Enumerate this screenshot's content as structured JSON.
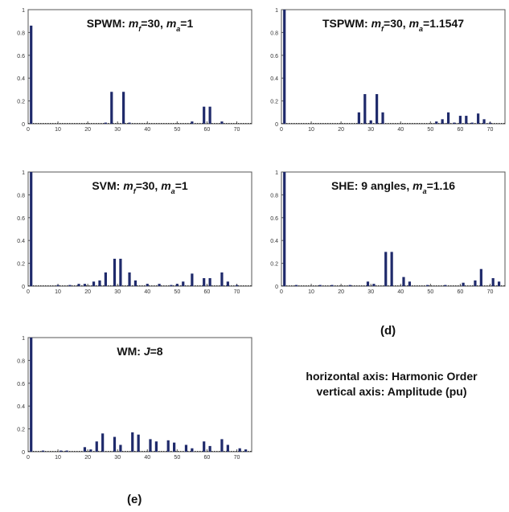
{
  "chart_data": [
    {
      "type": "bar",
      "title": [
        "SPWM: ",
        "m",
        "f",
        "=30, ",
        "m",
        "a",
        "=1"
      ],
      "xlim": [
        0,
        75
      ],
      "ylim": [
        0,
        1
      ],
      "xticks": [
        "0",
        "10",
        "20",
        "30",
        "40",
        "50",
        "60",
        "70"
      ],
      "yticks": [
        "0",
        "0.2",
        "0.4",
        "0.6",
        "0.8",
        "1"
      ],
      "x": [
        1,
        26,
        28,
        32,
        34,
        55,
        59,
        61,
        65
      ],
      "values": [
        0.86,
        0.01,
        0.28,
        0.28,
        0.01,
        0.02,
        0.15,
        0.15,
        0.02
      ]
    },
    {
      "type": "bar",
      "title": [
        "TSPWM: ",
        "m",
        "f",
        "=30, ",
        "m",
        "a",
        "=1.1547"
      ],
      "xlim": [
        0,
        75
      ],
      "ylim": [
        0,
        1
      ],
      "xticks": [
        "0",
        "10",
        "20",
        "30",
        "40",
        "50",
        "60",
        "70"
      ],
      "yticks": [
        "0",
        "0.2",
        "0.4",
        "0.6",
        "0.8",
        "1"
      ],
      "x": [
        1,
        26,
        28,
        30,
        32,
        34,
        52,
        54,
        56,
        58,
        60,
        62,
        64,
        66,
        68,
        70
      ],
      "values": [
        1.0,
        0.1,
        0.26,
        0.03,
        0.26,
        0.1,
        0.02,
        0.04,
        0.1,
        0.01,
        0.07,
        0.07,
        0.01,
        0.09,
        0.04,
        0.01
      ]
    },
    {
      "type": "bar",
      "title": [
        "SVM: ",
        "m",
        "f",
        "=30, ",
        "m",
        "a",
        "=1"
      ],
      "xlim": [
        0,
        75
      ],
      "ylim": [
        0,
        1
      ],
      "xticks": [
        "0",
        "10",
        "20",
        "30",
        "40",
        "50",
        "60",
        "70"
      ],
      "yticks": [
        "0",
        "0.2",
        "0.4",
        "0.6",
        "0.8",
        "1"
      ],
      "x": [
        1,
        10,
        14,
        17,
        19,
        22,
        24,
        26,
        29,
        31,
        34,
        36,
        40,
        44,
        48,
        50,
        52,
        55,
        59,
        61,
        65,
        67,
        70
      ],
      "values": [
        1.0,
        0.01,
        0.01,
        0.02,
        0.02,
        0.04,
        0.05,
        0.12,
        0.24,
        0.24,
        0.12,
        0.05,
        0.02,
        0.02,
        0.01,
        0.02,
        0.04,
        0.11,
        0.07,
        0.07,
        0.12,
        0.04,
        0.01
      ]
    },
    {
      "type": "bar",
      "title": [
        "SHE: 9 angles, ",
        "m",
        "a",
        "=1.16"
      ],
      "xlim": [
        0,
        75
      ],
      "ylim": [
        0,
        1
      ],
      "xticks": [
        "0",
        "10",
        "20",
        "30",
        "40",
        "50",
        "60",
        "70"
      ],
      "yticks": [
        "0",
        "0.2",
        "0.4",
        "0.6",
        "0.8",
        "1"
      ],
      "x": [
        1,
        5,
        13,
        17,
        23,
        29,
        31,
        35,
        37,
        41,
        43,
        49,
        55,
        61,
        65,
        67,
        71,
        73
      ],
      "values": [
        1.0,
        0.01,
        0.01,
        0.01,
        0.01,
        0.04,
        0.02,
        0.3,
        0.3,
        0.08,
        0.04,
        0.01,
        0.01,
        0.03,
        0.05,
        0.15,
        0.07,
        0.04
      ]
    },
    {
      "type": "bar",
      "title": [
        "WM: ",
        "J",
        "=8"
      ],
      "xlim": [
        0,
        75
      ],
      "ylim": [
        0,
        1
      ],
      "xticks": [
        "0",
        "10",
        "20",
        "30",
        "40",
        "50",
        "60",
        "70"
      ],
      "yticks": [
        "0",
        "0.2",
        "0.4",
        "0.6",
        "0.8",
        "1"
      ],
      "x": [
        1,
        5,
        11,
        13,
        19,
        21,
        23,
        25,
        29,
        31,
        35,
        37,
        41,
        43,
        47,
        49,
        53,
        55,
        59,
        61,
        65,
        67,
        71,
        73
      ],
      "values": [
        1.0,
        0.01,
        0.01,
        0.01,
        0.04,
        0.02,
        0.09,
        0.16,
        0.13,
        0.06,
        0.17,
        0.15,
        0.11,
        0.09,
        0.1,
        0.08,
        0.06,
        0.03,
        0.09,
        0.05,
        0.11,
        0.06,
        0.03,
        0.02
      ]
    }
  ],
  "captions": {
    "d": "(d)",
    "e": "(e)"
  },
  "axis_note": {
    "horizontal": "horizontal axis: Harmonic Order",
    "vertical": "vertical axis: Amplitude (pu)"
  },
  "colors": {
    "bar": "#1f2a6b",
    "frame": "#555555",
    "baseline": "#333333"
  }
}
